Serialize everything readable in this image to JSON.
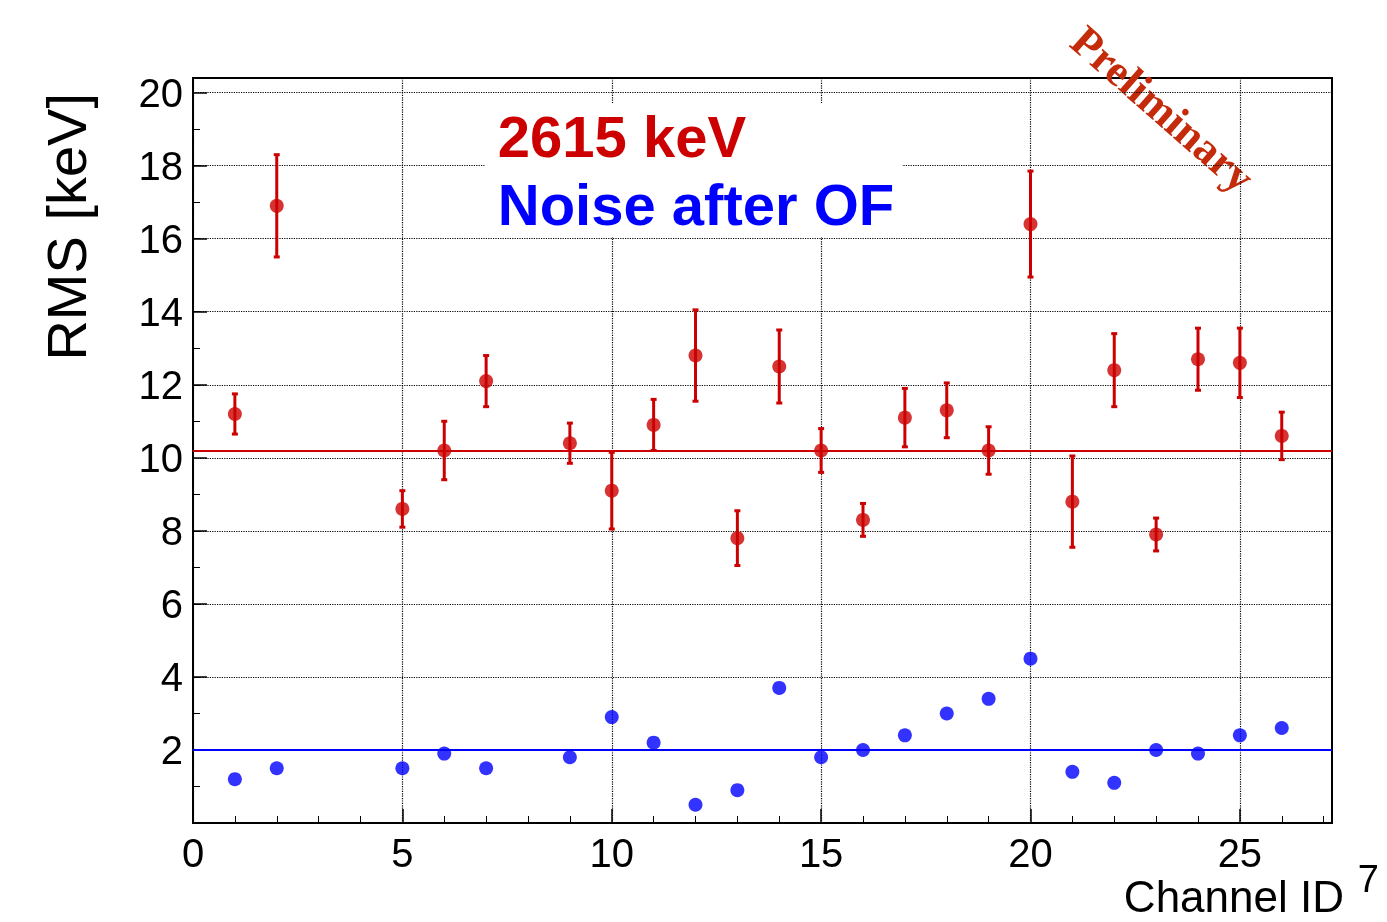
{
  "chart_data": {
    "type": "scatter",
    "xlabel": "Channel ID",
    "ylabel": "RMS [keV]",
    "xlim": [
      0,
      27.2
    ],
    "ylim": [
      0,
      20.4
    ],
    "xticks": [
      0,
      5,
      10,
      15,
      20,
      25
    ],
    "yticks": [
      2,
      4,
      6,
      8,
      10,
      12,
      14,
      16,
      18,
      20
    ],
    "grid": true,
    "marker": "circle",
    "legend": "top",
    "x": [
      1,
      2,
      5,
      6,
      7,
      9,
      10,
      11,
      12,
      13,
      14,
      15,
      16,
      17,
      18,
      19,
      20,
      21,
      22,
      23,
      24,
      25,
      26
    ],
    "series": [
      {
        "name": "2615 keV",
        "color": "#cc0000",
        "values": [
          11.2,
          16.9,
          8.6,
          10.2,
          12.1,
          10.4,
          9.1,
          10.9,
          12.8,
          7.8,
          12.5,
          10.2,
          8.3,
          11.1,
          11.3,
          10.2,
          16.4,
          8.8,
          12.4,
          7.9,
          12.7,
          12.6,
          10.6
        ],
        "errors": [
          0.55,
          1.4,
          0.5,
          0.8,
          0.7,
          0.55,
          1.05,
          0.7,
          1.25,
          0.75,
          1.0,
          0.6,
          0.45,
          0.8,
          0.75,
          0.65,
          1.45,
          1.25,
          1.0,
          0.45,
          0.85,
          0.95,
          0.65
        ]
      },
      {
        "name": "Noise after OF",
        "color": "#0000ff",
        "values": [
          1.2,
          1.5,
          1.5,
          1.9,
          1.5,
          1.8,
          2.9,
          2.2,
          0.5,
          0.9,
          3.7,
          1.8,
          2.0,
          2.4,
          3.0,
          3.4,
          4.5,
          1.4,
          1.1,
          2.0,
          1.9,
          2.4,
          2.6
        ]
      }
    ],
    "ref_lines": [
      {
        "axis": "y",
        "value": 10.2,
        "color": "#cc0000"
      },
      {
        "axis": "y",
        "value": 2.0,
        "color": "#0000ff"
      }
    ],
    "annotations": [
      "Preliminary",
      "7"
    ]
  }
}
